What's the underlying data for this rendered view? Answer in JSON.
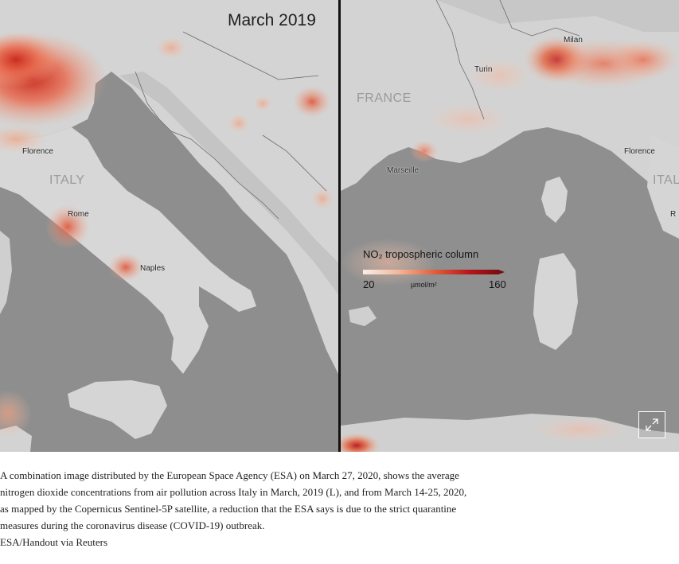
{
  "figure": {
    "left_panel": {
      "title": "March 2019",
      "labels": {
        "florence": "Florence",
        "italy": "ITALY",
        "rome": "Rome",
        "naples": "Naples"
      }
    },
    "right_panel": {
      "labels": {
        "milan": "Milan",
        "turin": "Turin",
        "france": "FRANCE",
        "marseille": "Marseille",
        "florence": "Florence",
        "italy": "ITAL",
        "rome_partial": "R"
      }
    },
    "legend": {
      "title": "NO₂ tropospheric column",
      "min": "20",
      "max": "160",
      "unit": "µmol/m²",
      "colors": [
        "#f7efe8",
        "#f4b79a",
        "#e2603c",
        "#b8151a",
        "#6e0a0c"
      ]
    },
    "expand_icon": "expand-arrows-icon"
  },
  "caption": {
    "text": "A combination image distributed by the European Space Agency (ESA) on March 27, 2020, shows the average nitrogen dioxide concentrations from air pollution across Italy in March, 2019 (L), and from March 14-25, 2020, as mapped by the Copernicus Sentinel-5P satellite, a reduction that the ESA says is due to the strict quarantine measures during the coronavirus disease (COVID-19) outbreak.",
    "credit": "ESA/Handout via Reuters"
  }
}
